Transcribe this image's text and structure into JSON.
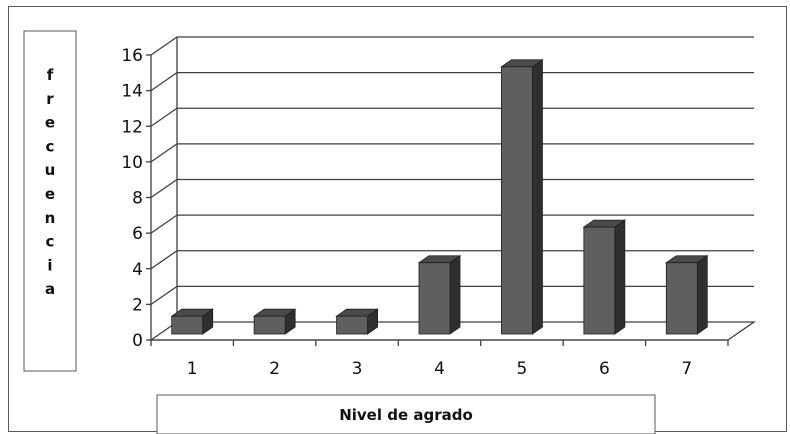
{
  "chart_data": {
    "type": "bar",
    "style": "3d-column",
    "categories": [
      "1",
      "2",
      "3",
      "4",
      "5",
      "6",
      "7"
    ],
    "values": [
      1,
      1,
      1,
      4,
      15,
      6,
      4
    ],
    "xlabel": "Nivel de agrado",
    "ylabel": "frecuencia",
    "ylim": [
      0,
      16
    ],
    "yticks": [
      "0",
      "2",
      "4",
      "6",
      "8",
      "10",
      "12",
      "14",
      "16"
    ],
    "grid": true,
    "legend": false,
    "colors": {
      "bar_front": "#5f5f5f",
      "bar_side": "#2f2f2f",
      "bar_top": "#4a4a4a",
      "gridline": "#3f3f3f",
      "frame": "#5a5a5a"
    }
  }
}
